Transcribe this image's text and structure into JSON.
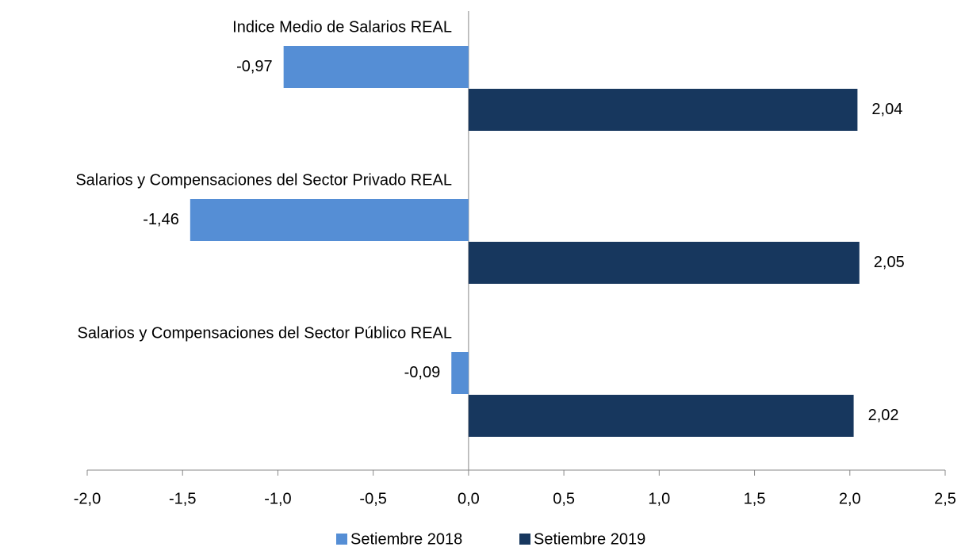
{
  "chart_data": {
    "type": "bar",
    "orientation": "horizontal",
    "categories": [
      "Indice Medio de Salarios REAL",
      "Salarios y Compensaciones del Sector Privado REAL",
      "Salarios y Compensaciones del Sector Público REAL"
    ],
    "series": [
      {
        "name": "Setiembre 2018",
        "color": "#558ed5",
        "values": [
          -0.97,
          -1.46,
          -0.09
        ],
        "value_labels": [
          "-0,97",
          "-1,46",
          "-0,09"
        ]
      },
      {
        "name": "Setiembre 2019",
        "color": "#17375e",
        "values": [
          2.04,
          2.05,
          2.02
        ],
        "value_labels": [
          "2,04",
          "2,05",
          "2,02"
        ]
      }
    ],
    "xlim": [
      -2,
      2.5
    ],
    "xticks": [
      {
        "value": -2,
        "label": "-2,0"
      },
      {
        "value": -1.5,
        "label": "-1,5"
      },
      {
        "value": -1,
        "label": "-1,0"
      },
      {
        "value": -0.5,
        "label": "-0,5"
      },
      {
        "value": 0,
        "label": "0,0"
      },
      {
        "value": 0.5,
        "label": "0,5"
      },
      {
        "value": 1,
        "label": "1,0"
      },
      {
        "value": 1.5,
        "label": "1,5"
      },
      {
        "value": 2,
        "label": "2,0"
      },
      {
        "value": 2.5,
        "label": "2,5"
      }
    ],
    "legend": "bottom"
  }
}
